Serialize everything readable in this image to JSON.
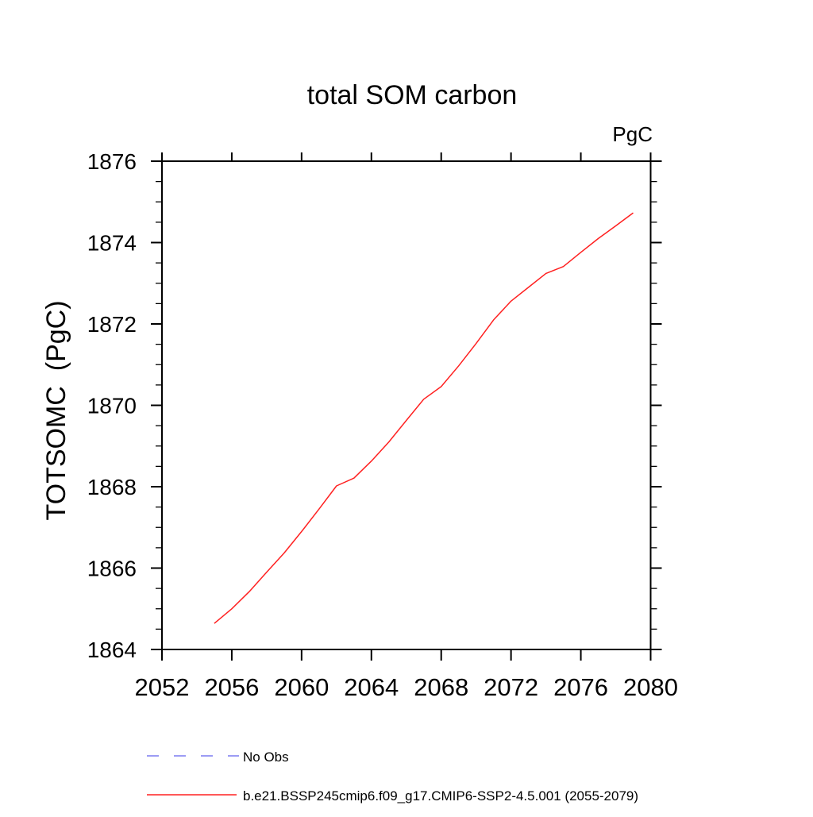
{
  "title": "total SOM carbon",
  "units_label": "PgC",
  "axes": {
    "y_title": "TOTSOMC  (PgC)",
    "x_tick_labels": [
      "2052",
      "2056",
      "2060",
      "2064",
      "2068",
      "2072",
      "2076",
      "2080"
    ],
    "y_tick_labels": [
      "1864",
      "1866",
      "1868",
      "1870",
      "1872",
      "1874",
      "1876"
    ]
  },
  "legend": {
    "items": [
      {
        "label": "No Obs",
        "color": "#7b7bf0",
        "dashed": true
      },
      {
        "label": "b.e21.BSSP245cmip6.f09_g17.CMIP6-SSP2-4.5.001 (2055-2079)",
        "color": "#ff2020",
        "dashed": false
      }
    ]
  },
  "chart_data": {
    "type": "line",
    "title": "total SOM carbon",
    "xlabel": "",
    "ylabel": "TOTSOMC (PgC)",
    "xlim": [
      2052,
      2080
    ],
    "ylim": [
      1864,
      1876
    ],
    "x_major_ticks": [
      2052,
      2056,
      2060,
      2064,
      2068,
      2072,
      2076,
      2080
    ],
    "y_major_ticks": [
      1864,
      1866,
      1868,
      1870,
      1872,
      1874,
      1876
    ],
    "y_minor_step": 0.5,
    "grid": false,
    "legend_position": "bottom-left",
    "series": [
      {
        "name": "No Obs",
        "color": "#7b7bf0",
        "dashed": true,
        "x": [],
        "y": []
      },
      {
        "name": "b.e21.BSSP245cmip6.f09_g17.CMIP6-SSP2-4.5.001 (2055-2079)",
        "color": "#ff2020",
        "dashed": false,
        "x": [
          2055,
          2056,
          2057,
          2058,
          2059,
          2060,
          2061,
          2062,
          2063,
          2064,
          2065,
          2066,
          2067,
          2068,
          2069,
          2070,
          2071,
          2072,
          2073,
          2074,
          2075,
          2076,
          2077,
          2078,
          2079
        ],
        "y": [
          1864.64,
          1865.0,
          1865.42,
          1865.9,
          1866.37,
          1866.9,
          1867.45,
          1868.02,
          1868.21,
          1868.63,
          1869.1,
          1869.63,
          1870.15,
          1870.46,
          1870.97,
          1871.52,
          1872.1,
          1872.56,
          1872.9,
          1873.24,
          1873.41,
          1873.76,
          1874.1,
          1874.41,
          1874.73
        ]
      }
    ]
  }
}
